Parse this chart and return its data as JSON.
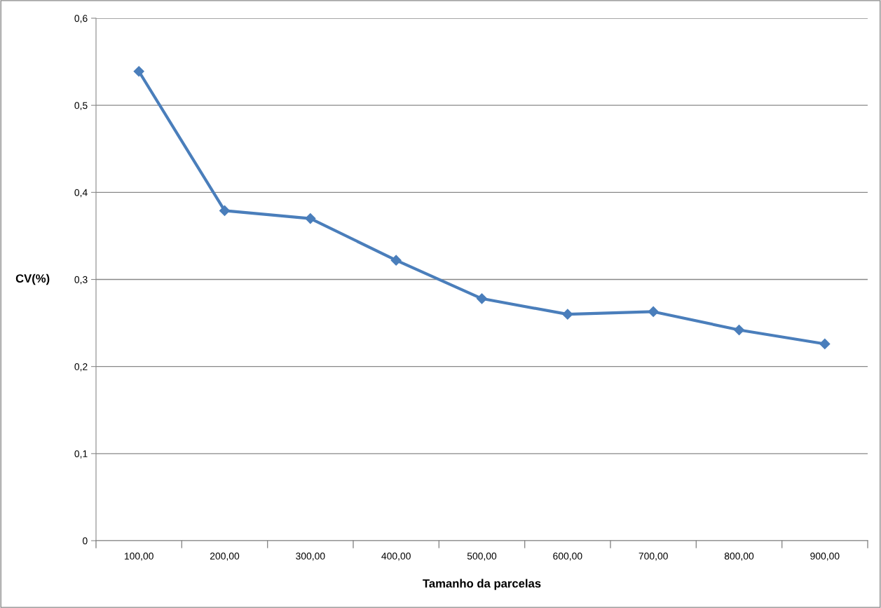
{
  "chart_data": {
    "type": "line",
    "xlabel": "Tamanho da parcelas",
    "ylabel": "CV(%)",
    "categories": [
      "100,00",
      "200,00",
      "300,00",
      "400,00",
      "500,00",
      "600,00",
      "700,00",
      "800,00",
      "900,00"
    ],
    "series": [
      {
        "color": "#4a7ebb",
        "values": [
          0.539,
          0.379,
          0.37,
          0.322,
          0.278,
          0.26,
          0.263,
          0.242,
          0.226
        ]
      }
    ],
    "ylim": [
      0,
      0.6
    ],
    "yticks": [
      {
        "value": 0,
        "label": "0"
      },
      {
        "value": 0.1,
        "label": "0,1"
      },
      {
        "value": 0.2,
        "label": "0,2"
      },
      {
        "value": 0.3,
        "label": "0,3"
      },
      {
        "value": 0.4,
        "label": "0,4"
      },
      {
        "value": 0.5,
        "label": "0,5"
      },
      {
        "value": 0.6,
        "label": "0,6"
      }
    ],
    "grid": "y",
    "marker": "diamond",
    "line_style": "solid"
  }
}
